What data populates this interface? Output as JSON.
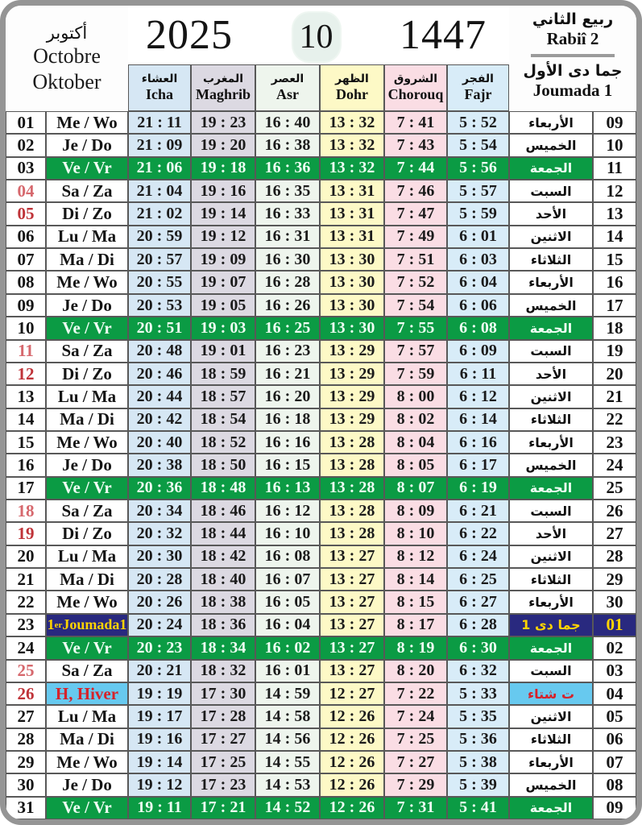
{
  "header": {
    "month_ar": "أكتوبر",
    "month_fr": "Octobre",
    "month_de": "Oktober",
    "year_gregorian": "2025",
    "month_number": "10",
    "year_hijri": "1447",
    "hijri_month1_ar": "ربيع الثاني",
    "hijri_month1_lat": "Rabiî 2",
    "hijri_month2_ar": "جما دى الأول",
    "hijri_month2_lat": "Joumada 1"
  },
  "columns": [
    {
      "id": "icha",
      "ar": "العشاء",
      "lat": "Icha",
      "color": "#d6e7f4"
    },
    {
      "id": "maghrib",
      "ar": "المغرب",
      "lat": "Maghrib",
      "color": "#dcd9e2"
    },
    {
      "id": "asr",
      "ar": "العصر",
      "lat": "Asr",
      "color": "#eef5ed"
    },
    {
      "id": "dohr",
      "ar": "الظهر",
      "lat": "Dohr",
      "color": "#fdf9c6"
    },
    {
      "id": "chorouq",
      "ar": "الشروق",
      "lat": "Chorouq",
      "color": "#fadde4"
    },
    {
      "id": "fajr",
      "ar": "الفجر",
      "lat": "Fajr",
      "color": "#d8ecf8"
    }
  ],
  "colors": {
    "friday_green": "#0b9b44",
    "friday_text": "#eefdf3",
    "navy": "#29297f",
    "navy_text": "#ffd400",
    "winter_cyan": "#67c9ef",
    "winter_text": "#d6222a",
    "saturday_red": "#d6686d",
    "sunday_red": "#bf3338",
    "border_gray": "#585858",
    "frame_gray": "#959595"
  },
  "special_labels": {
    "joumada_day_num": "1",
    "joumada_day_sup": "er",
    "joumada_day_rest": "Joumada1",
    "winter_day": "H, Hiver",
    "joumada_ar": "جما دى 1",
    "winter_ar": "ت شتاء"
  },
  "rows": [
    {
      "date": "01",
      "ds": "",
      "day": "Me / Wo",
      "style": "normal",
      "times": [
        "21 : 11",
        "19 : 23",
        "16 : 40",
        "13 : 32",
        "7 : 41",
        "5 : 52"
      ],
      "ar": "الأربعاء",
      "hijri": "09"
    },
    {
      "date": "02",
      "ds": "",
      "day": "Je / Do",
      "style": "normal",
      "times": [
        "21 : 09",
        "19 : 20",
        "16 : 38",
        "13 : 32",
        "7 : 43",
        "5 : 54"
      ],
      "ar": "الخميس",
      "hijri": "10"
    },
    {
      "date": "03",
      "ds": "",
      "day": "Ve / Vr",
      "style": "friday",
      "times": [
        "21 : 06",
        "19 : 18",
        "16 : 36",
        "13 : 32",
        "7 : 44",
        "5 : 56"
      ],
      "ar": "الجمعة",
      "hijri": "11"
    },
    {
      "date": "04",
      "ds": "sat",
      "day": "Sa / Za",
      "style": "normal",
      "times": [
        "21 : 04",
        "19 : 16",
        "16 : 35",
        "13 : 31",
        "7 : 46",
        "5 : 57"
      ],
      "ar": "السبت",
      "hijri": "12"
    },
    {
      "date": "05",
      "ds": "sun",
      "day": "Di / Zo",
      "style": "normal",
      "times": [
        "21 : 02",
        "19 : 14",
        "16 : 33",
        "13 : 31",
        "7 : 47",
        "5 : 59"
      ],
      "ar": "الأحد",
      "hijri": "13"
    },
    {
      "date": "06",
      "ds": "",
      "day": "Lu / Ma",
      "style": "normal",
      "times": [
        "20 : 59",
        "19 : 12",
        "16 : 31",
        "13 : 31",
        "7 : 49",
        "6 : 01"
      ],
      "ar": "الاثنين",
      "hijri": "14"
    },
    {
      "date": "07",
      "ds": "",
      "day": "Ma / Di",
      "style": "normal",
      "times": [
        "20 : 57",
        "19 : 09",
        "16 : 30",
        "13 : 30",
        "7 : 51",
        "6 : 03"
      ],
      "ar": "الثلاثاء",
      "hijri": "15"
    },
    {
      "date": "08",
      "ds": "",
      "day": "Me / Wo",
      "style": "normal",
      "times": [
        "20 : 55",
        "19 : 07",
        "16 : 28",
        "13 : 30",
        "7 : 52",
        "6 : 04"
      ],
      "ar": "الأربعاء",
      "hijri": "16"
    },
    {
      "date": "09",
      "ds": "",
      "day": "Je / Do",
      "style": "normal",
      "times": [
        "20 : 53",
        "19 : 05",
        "16 : 26",
        "13 : 30",
        "7 : 54",
        "6 : 06"
      ],
      "ar": "الخميس",
      "hijri": "17"
    },
    {
      "date": "10",
      "ds": "",
      "day": "Ve / Vr",
      "style": "friday",
      "times": [
        "20 : 51",
        "19 : 03",
        "16 : 25",
        "13 : 30",
        "7 : 55",
        "6 : 08"
      ],
      "ar": "الجمعة",
      "hijri": "18"
    },
    {
      "date": "11",
      "ds": "sat",
      "day": "Sa / Za",
      "style": "normal",
      "times": [
        "20 : 48",
        "19 : 01",
        "16 : 23",
        "13 : 29",
        "7 : 57",
        "6 : 09"
      ],
      "ar": "السبت",
      "hijri": "19"
    },
    {
      "date": "12",
      "ds": "sun",
      "day": "Di / Zo",
      "style": "normal",
      "times": [
        "20 : 46",
        "18 : 59",
        "16 : 21",
        "13 : 29",
        "7 : 59",
        "6 : 11"
      ],
      "ar": "الأحد",
      "hijri": "20"
    },
    {
      "date": "13",
      "ds": "",
      "day": "Lu / Ma",
      "style": "normal",
      "times": [
        "20 : 44",
        "18 : 57",
        "16 : 20",
        "13 : 29",
        "8 : 00",
        "6 : 12"
      ],
      "ar": "الاثنين",
      "hijri": "21"
    },
    {
      "date": "14",
      "ds": "",
      "day": "Ma / Di",
      "style": "normal",
      "times": [
        "20 : 42",
        "18 : 54",
        "16 : 18",
        "13 : 29",
        "8 : 02",
        "6 : 14"
      ],
      "ar": "الثلاثاء",
      "hijri": "22"
    },
    {
      "date": "15",
      "ds": "",
      "day": "Me / Wo",
      "style": "normal",
      "times": [
        "20 : 40",
        "18 : 52",
        "16 : 16",
        "13 : 28",
        "8 : 04",
        "6 : 16"
      ],
      "ar": "الأربعاء",
      "hijri": "23"
    },
    {
      "date": "16",
      "ds": "",
      "day": "Je / Do",
      "style": "normal",
      "times": [
        "20 : 38",
        "18 : 50",
        "16 : 15",
        "13 : 28",
        "8 : 05",
        "6 : 17"
      ],
      "ar": "الخميس",
      "hijri": "24"
    },
    {
      "date": "17",
      "ds": "",
      "day": "Ve / Vr",
      "style": "friday",
      "times": [
        "20 : 36",
        "18 : 48",
        "16 : 13",
        "13 : 28",
        "8 : 07",
        "6 : 19"
      ],
      "ar": "الجمعة",
      "hijri": "25"
    },
    {
      "date": "18",
      "ds": "sat",
      "day": "Sa / Za",
      "style": "normal",
      "times": [
        "20 : 34",
        "18 : 46",
        "16 : 12",
        "13 : 28",
        "8 : 09",
        "6 : 21"
      ],
      "ar": "السبت",
      "hijri": "26"
    },
    {
      "date": "19",
      "ds": "sun",
      "day": "Di / Zo",
      "style": "normal",
      "times": [
        "20 : 32",
        "18 : 44",
        "16 : 10",
        "13 : 28",
        "8 : 10",
        "6 : 22"
      ],
      "ar": "الأحد",
      "hijri": "27"
    },
    {
      "date": "20",
      "ds": "",
      "day": "Lu / Ma",
      "style": "normal",
      "times": [
        "20 : 30",
        "18 : 42",
        "16 : 08",
        "13 : 27",
        "8 : 12",
        "6 : 24"
      ],
      "ar": "الاثنين",
      "hijri": "28"
    },
    {
      "date": "21",
      "ds": "",
      "day": "Ma / Di",
      "style": "normal",
      "times": [
        "20 : 28",
        "18 : 40",
        "16 : 07",
        "13 : 27",
        "8 : 14",
        "6 : 25"
      ],
      "ar": "الثلاثاء",
      "hijri": "29"
    },
    {
      "date": "22",
      "ds": "",
      "day": "Me / Wo",
      "style": "normal",
      "times": [
        "20 : 26",
        "18 : 38",
        "16 : 05",
        "13 : 27",
        "8 : 15",
        "6 : 27"
      ],
      "ar": "الأربعاء",
      "hijri": "30"
    },
    {
      "date": "23",
      "ds": "",
      "day": "1er Joumada1",
      "style": "joumada",
      "times": [
        "20 : 24",
        "18 : 36",
        "16 : 04",
        "13 : 27",
        "8 : 17",
        "6 : 28"
      ],
      "ar": "جما دى 1",
      "hijri": "01"
    },
    {
      "date": "24",
      "ds": "",
      "day": "Ve / Vr",
      "style": "friday",
      "times": [
        "20 : 23",
        "18 : 34",
        "16 : 02",
        "13 : 27",
        "8 : 19",
        "6 : 30"
      ],
      "ar": "الجمعة",
      "hijri": "02"
    },
    {
      "date": "25",
      "ds": "sat",
      "day": "Sa / Za",
      "style": "normal",
      "times": [
        "20 : 21",
        "18 : 32",
        "16 : 01",
        "13 : 27",
        "8 : 20",
        "6 : 32"
      ],
      "ar": "السبت",
      "hijri": "03"
    },
    {
      "date": "26",
      "ds": "sun",
      "day": "H, Hiver",
      "style": "hiver",
      "times": [
        "19 : 19",
        "17 : 30",
        "14 : 59",
        "12 : 27",
        "7 : 22",
        "5 : 33"
      ],
      "ar": "ت شتاء",
      "hijri": "04"
    },
    {
      "date": "27",
      "ds": "",
      "day": "Lu / Ma",
      "style": "normal",
      "times": [
        "19 : 17",
        "17 : 28",
        "14 : 58",
        "12 : 26",
        "7 : 24",
        "5 : 35"
      ],
      "ar": "الاثنين",
      "hijri": "05"
    },
    {
      "date": "28",
      "ds": "",
      "day": "Ma / Di",
      "style": "normal",
      "times": [
        "19 : 16",
        "17 : 27",
        "14 : 56",
        "12 : 26",
        "7 : 25",
        "5 : 36"
      ],
      "ar": "الثلاثاء",
      "hijri": "06"
    },
    {
      "date": "29",
      "ds": "",
      "day": "Me / Wo",
      "style": "normal",
      "times": [
        "19 : 14",
        "17 : 25",
        "14 : 55",
        "12 : 26",
        "7 : 27",
        "5 : 38"
      ],
      "ar": "الأربعاء",
      "hijri": "07"
    },
    {
      "date": "30",
      "ds": "",
      "day": "Je / Do",
      "style": "normal",
      "times": [
        "19 : 12",
        "17 : 23",
        "14 : 53",
        "12 : 26",
        "7 : 29",
        "5 : 39"
      ],
      "ar": "الخميس",
      "hijri": "08"
    },
    {
      "date": "31",
      "ds": "",
      "day": "Ve / Vr",
      "style": "friday",
      "times": [
        "19 : 11",
        "17 : 21",
        "14 : 52",
        "12 : 26",
        "7 : 31",
        "5 : 41"
      ],
      "ar": "الجمعة",
      "hijri": "09"
    }
  ]
}
